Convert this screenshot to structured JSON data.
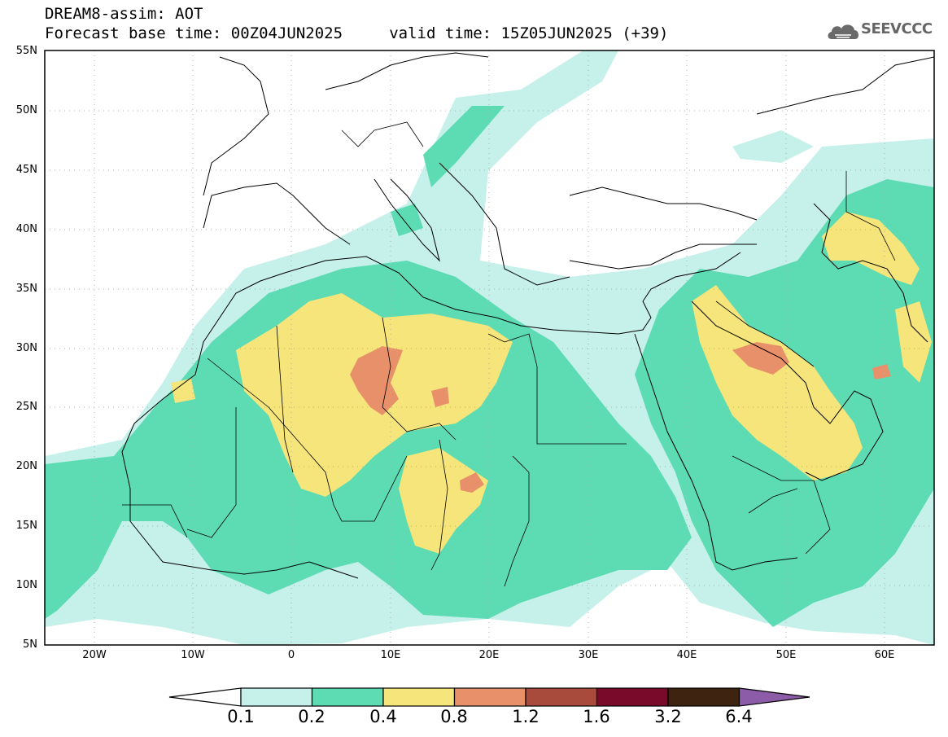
{
  "header": {
    "title_line1": "DREAM8-assim: AOT",
    "title_line2": "Forecast base time: 00Z04JUN2025     valid time: 15Z05JUN2025 (+39)",
    "logo_text": "SEEVCCC"
  },
  "map": {
    "lon_range": [
      -25,
      65
    ],
    "lat_range": [
      5,
      55
    ],
    "lat_ticks": [
      "55N",
      "50N",
      "45N",
      "40N",
      "35N",
      "30N",
      "25N",
      "20N",
      "15N",
      "10N",
      "5N"
    ],
    "lon_ticks": [
      "20W",
      "10W",
      "0",
      "10E",
      "20E",
      "30E",
      "40E",
      "50E",
      "60E"
    ],
    "field": "Aerosol Optical Thickness"
  },
  "colorbar": {
    "labels": [
      "0.1",
      "0.2",
      "0.4",
      "0.8",
      "1.2",
      "1.6",
      "3.2",
      "6.4"
    ],
    "colors": [
      "#ffffff",
      "#c6f0ea",
      "#5ddcb4",
      "#f6e57a",
      "#e8906a",
      "#a84a3c",
      "#7a0a2a",
      "#3e2410",
      "#8c5ca8"
    ]
  }
}
